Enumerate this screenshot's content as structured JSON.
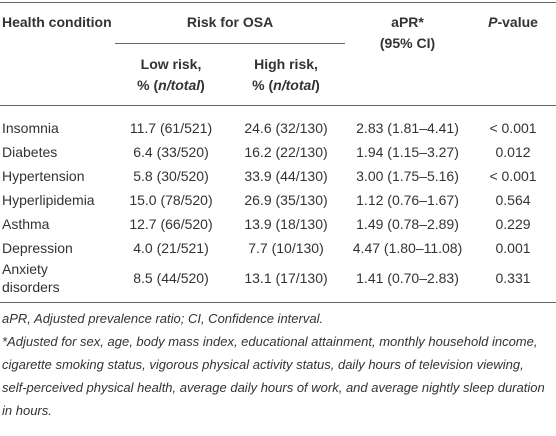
{
  "header": {
    "condition": "Health condition",
    "risk": "Risk for OSA",
    "low": {
      "line1": "Low risk,",
      "pre": "% (",
      "italic": "n/total",
      "post": ")"
    },
    "high": {
      "line1": "High risk,",
      "pre": "% (",
      "italic": "n/total",
      "post": ")"
    },
    "apr": {
      "line1": "aPR*",
      "line2": "(95% CI)"
    },
    "pvalue": {
      "italic": "P",
      "rest": "-value"
    }
  },
  "table": {
    "rows": [
      [
        "Insomnia",
        "11.7 (61/521)",
        "24.6 (32/130)",
        "2.83 (1.81–4.41)",
        "< 0.001"
      ],
      [
        "Diabetes",
        "6.4 (33/520)",
        "16.2 (22/130)",
        "1.94 (1.15–3.27)",
        "0.012"
      ],
      [
        "Hypertension",
        "5.8 (30/520)",
        "33.9 (44/130)",
        "3.00 (1.75–5.16)",
        "< 0.001"
      ],
      [
        "Hyperlipidemia",
        "15.0 (78/520)",
        "26.9 (35/130)",
        "1.12 (0.76–1.67)",
        "0.564"
      ],
      [
        "Asthma",
        "12.7 (66/520)",
        "13.9 (18/130)",
        "1.49 (0.78–2.89)",
        "0.229"
      ],
      [
        "Depression",
        "4.0 (21/521)",
        "7.7 (10/130)",
        "4.47 (1.80–11.08)",
        "0.001"
      ],
      [
        "Anxiety disorders",
        "8.5 (44/520)",
        "13.1 (17/130)",
        "1.41 (0.70–2.83)",
        "0.331"
      ]
    ]
  },
  "notes": [
    "aPR, Adjusted prevalence ratio; CI, Confidence interval.",
    "*Adjusted for sex, age, body mass index, educational attainment, monthly household income, cigarette smoking status, vigorous physical activity status, daily hours of television viewing, self-perceived physical health, average daily hours of work, and average nightly sleep duration in hours."
  ]
}
